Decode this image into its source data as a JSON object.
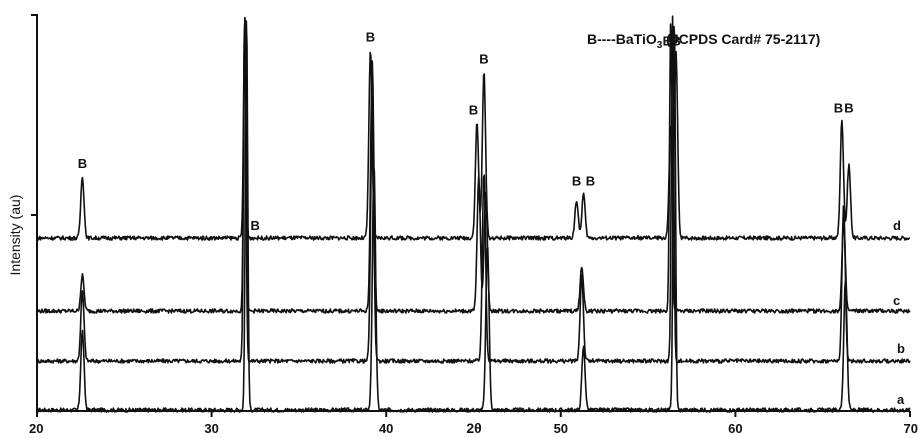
{
  "chart_data": {
    "type": "line",
    "xlabel": "2θ",
    "ylabel": "Intensity (au)",
    "xlim": [
      20,
      70
    ],
    "x_ticks": [
      "20",
      "30",
      "40",
      "50",
      "60",
      "70"
    ],
    "legend_note": {
      "prefix": "B----BaTiO",
      "subscript": "3",
      "suffix": " (JCPDS Card# 75-2117)"
    },
    "peak_marker": "B",
    "series": [
      {
        "name": "a",
        "peaks": [
          {
            "x": 22.6,
            "height": 0.2
          },
          {
            "x": 32.0,
            "height": 1.0
          },
          {
            "x": 39.3,
            "height": 0.62
          },
          {
            "x": 45.8,
            "height": 0.42
          },
          {
            "x": 51.3,
            "height": 0.16
          },
          {
            "x": 56.5,
            "height": 1.0
          },
          {
            "x": 66.3,
            "height": 0.33
          }
        ]
      },
      {
        "name": "b",
        "peaks": [
          {
            "x": 22.6,
            "height": 0.2
          },
          {
            "x": 31.9,
            "height": 1.0
          },
          {
            "x": 39.2,
            "height": 0.7
          },
          {
            "x": 45.6,
            "height": 0.55
          },
          {
            "x": 51.2,
            "height": 0.25
          },
          {
            "x": 56.4,
            "height": 1.0
          },
          {
            "x": 66.2,
            "height": 0.45
          }
        ]
      },
      {
        "name": "c",
        "peaks": [
          {
            "x": 22.6,
            "height": 0.12
          },
          {
            "x": 31.9,
            "height": 1.0
          },
          {
            "x": 39.2,
            "height": 0.85
          },
          {
            "x": 45.3,
            "height": 0.45
          },
          {
            "x": 45.7,
            "height": 0.4
          },
          {
            "x": 51.2,
            "height": 0.15
          },
          {
            "x": 56.3,
            "height": 1.0
          },
          {
            "x": 66.2,
            "height": 0.3
          }
        ]
      },
      {
        "name": "d",
        "peaks": [
          {
            "x": 22.6,
            "height": 0.28
          },
          {
            "x": 31.9,
            "height": 1.0
          },
          {
            "x": 39.1,
            "height": 0.85
          },
          {
            "x": 45.2,
            "height": 0.52
          },
          {
            "x": 45.6,
            "height": 0.75
          },
          {
            "x": 50.9,
            "height": 0.17
          },
          {
            "x": 51.3,
            "height": 0.2
          },
          {
            "x": 56.3,
            "height": 0.51
          },
          {
            "x": 56.6,
            "height": 0.83
          },
          {
            "x": 66.1,
            "height": 0.53
          },
          {
            "x": 66.5,
            "height": 0.33
          }
        ]
      }
    ],
    "peak_labels": [
      {
        "text": "B",
        "x": 22.6
      },
      {
        "text": "B",
        "x": 32.5
      },
      {
        "text": "B",
        "x": 39.1
      },
      {
        "text": "B",
        "x": 45.0
      },
      {
        "text": "B",
        "x": 45.6
      },
      {
        "text": "B",
        "x": 50.9
      },
      {
        "text": "B",
        "x": 51.7
      },
      {
        "text": "B",
        "x": 56.1
      },
      {
        "text": "B",
        "x": 56.6
      },
      {
        "text": "B",
        "x": 65.9
      },
      {
        "text": "B",
        "x": 66.5
      }
    ]
  }
}
